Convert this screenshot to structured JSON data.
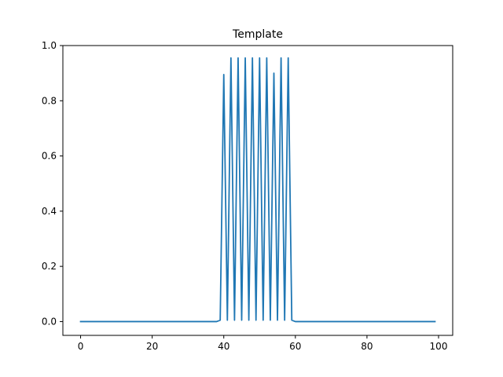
{
  "chart_data": {
    "type": "line",
    "title": "Template",
    "xlabel": "",
    "ylabel": "",
    "xlim": [
      -4.95,
      103.95
    ],
    "ylim": [
      -0.05,
      1.0
    ],
    "grid": false,
    "legend": "none",
    "x_ticks": [
      0,
      20,
      40,
      60,
      80,
      100
    ],
    "y_ticks": [
      0.0,
      0.2,
      0.4,
      0.6,
      0.8,
      1.0
    ],
    "x_tick_labels": [
      "0",
      "20",
      "40",
      "60",
      "80",
      "100"
    ],
    "y_tick_labels": [
      "0.0",
      "0.2",
      "0.4",
      "0.6",
      "0.8",
      "1.0"
    ],
    "line_color": "#1f77b4",
    "series": [
      {
        "x": [
          0,
          1,
          2,
          3,
          4,
          5,
          6,
          7,
          8,
          9,
          10,
          11,
          12,
          13,
          14,
          15,
          16,
          17,
          18,
          19,
          20,
          21,
          22,
          23,
          24,
          25,
          26,
          27,
          28,
          29,
          30,
          31,
          32,
          33,
          34,
          35,
          36,
          37,
          38,
          39,
          40,
          41,
          42,
          43,
          44,
          45,
          46,
          47,
          48,
          49,
          50,
          51,
          52,
          53,
          54,
          55,
          56,
          57,
          58,
          59,
          60,
          61,
          62,
          63,
          64,
          65,
          66,
          67,
          68,
          69,
          70,
          71,
          72,
          73,
          74,
          75,
          76,
          77,
          78,
          79,
          80,
          81,
          82,
          83,
          84,
          85,
          86,
          87,
          88,
          89,
          90,
          91,
          92,
          93,
          94,
          95,
          96,
          97,
          98,
          99
        ],
        "values": [
          0,
          0,
          0,
          0,
          0,
          0,
          0,
          0,
          0,
          0,
          0,
          0,
          0,
          0,
          0,
          0,
          0,
          0,
          0,
          0,
          0,
          0,
          0,
          0,
          0,
          0,
          0,
          0,
          0,
          0,
          0,
          0,
          0,
          0,
          0,
          0,
          0,
          0,
          0,
          0.005,
          0.895,
          0.005,
          0.955,
          0.005,
          0.955,
          0.005,
          0.955,
          0.005,
          0.955,
          0.005,
          0.955,
          0.005,
          0.955,
          0.005,
          0.9,
          0.005,
          0.955,
          0.005,
          0.955,
          0.005,
          0,
          0,
          0,
          0,
          0,
          0,
          0,
          0,
          0,
          0,
          0,
          0,
          0,
          0,
          0,
          0,
          0,
          0,
          0,
          0,
          0,
          0,
          0,
          0,
          0,
          0,
          0,
          0,
          0,
          0,
          0,
          0,
          0,
          0,
          0,
          0,
          0,
          0,
          0,
          0
        ]
      }
    ]
  }
}
